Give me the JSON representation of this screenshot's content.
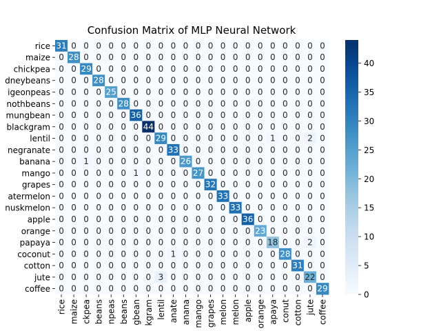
{
  "chart_data": {
    "type": "heatmap",
    "title": "Confusion Matrix of MLP Neural Network",
    "xlabel": "",
    "ylabel": "",
    "row_labels": [
      "rice",
      "maize",
      "chickpea",
      "kidneybeans",
      "pigeonpeas",
      "mothbeans",
      "mungbean",
      "blackgram",
      "lentil",
      "pomegranate",
      "banana",
      "mango",
      "grapes",
      "watermelon",
      "muskmelon",
      "apple",
      "orange",
      "papaya",
      "coconut",
      "cotton",
      "jute",
      "coffee"
    ],
    "row_labels_visible": [
      "rice",
      "maize",
      "chickpea",
      "dneybeans",
      "igeonpeas",
      "nothbeans",
      "mungbean",
      "blackgram",
      "lentil",
      "negranate",
      "banana",
      "mango",
      "grapes",
      "atermelon",
      "nuskmelon",
      "apple",
      "orange",
      "papaya",
      "coconut",
      "cotton",
      "jute",
      "coffee"
    ],
    "col_labels": [
      "rice",
      "maize",
      "chickpea",
      "kidneybeans",
      "pigeonpeas",
      "mothbeans",
      "mungbean",
      "blackgram",
      "lentil",
      "pomegranate",
      "banana",
      "mango",
      "grapes",
      "watermelon",
      "muskmelon",
      "apple",
      "orange",
      "papaya",
      "coconut",
      "cotton",
      "jute",
      "coffee"
    ],
    "col_labels_visible": [
      "rice",
      "maize",
      "ckpea",
      "beans",
      "npeas",
      "beans",
      "gbean",
      "kgram",
      "lentil",
      "anate",
      "anana",
      "mango",
      "grapes",
      "melon",
      "melon",
      "apple",
      "orange",
      "apaya",
      "conut",
      "cotton",
      "jute",
      "coffee"
    ],
    "matrix": [
      [
        31,
        0,
        0,
        0,
        0,
        0,
        0,
        0,
        0,
        0,
        0,
        0,
        0,
        0,
        0,
        0,
        0,
        0,
        0,
        0,
        0,
        0
      ],
      [
        0,
        28,
        0,
        0,
        0,
        0,
        0,
        0,
        0,
        0,
        0,
        0,
        0,
        0,
        0,
        0,
        0,
        0,
        0,
        0,
        0,
        0
      ],
      [
        0,
        0,
        29,
        0,
        0,
        0,
        0,
        0,
        0,
        0,
        0,
        0,
        0,
        0,
        0,
        0,
        0,
        0,
        0,
        0,
        0,
        0
      ],
      [
        0,
        0,
        0,
        28,
        0,
        0,
        0,
        0,
        0,
        0,
        0,
        0,
        0,
        0,
        0,
        0,
        0,
        0,
        0,
        0,
        0,
        0
      ],
      [
        0,
        0,
        0,
        0,
        25,
        0,
        0,
        0,
        0,
        0,
        0,
        0,
        0,
        0,
        0,
        0,
        0,
        0,
        0,
        0,
        0,
        0
      ],
      [
        0,
        0,
        0,
        0,
        0,
        28,
        0,
        0,
        0,
        0,
        0,
        0,
        0,
        0,
        0,
        0,
        0,
        0,
        0,
        0,
        0,
        0
      ],
      [
        0,
        0,
        0,
        0,
        0,
        0,
        36,
        0,
        0,
        0,
        0,
        0,
        0,
        0,
        0,
        0,
        0,
        0,
        0,
        0,
        0,
        0
      ],
      [
        0,
        0,
        0,
        0,
        0,
        0,
        0,
        44,
        0,
        0,
        0,
        0,
        0,
        0,
        0,
        0,
        0,
        0,
        0,
        0,
        0,
        0
      ],
      [
        0,
        0,
        0,
        0,
        0,
        0,
        0,
        0,
        29,
        0,
        0,
        0,
        0,
        0,
        0,
        0,
        0,
        1,
        0,
        0,
        2,
        0
      ],
      [
        0,
        0,
        0,
        0,
        0,
        0,
        0,
        0,
        0,
        33,
        0,
        0,
        0,
        0,
        0,
        0,
        0,
        0,
        0,
        0,
        0,
        0
      ],
      [
        0,
        0,
        1,
        0,
        0,
        0,
        0,
        0,
        0,
        0,
        26,
        0,
        0,
        0,
        0,
        0,
        0,
        0,
        0,
        0,
        0,
        0
      ],
      [
        0,
        0,
        0,
        0,
        0,
        0,
        1,
        0,
        0,
        0,
        0,
        27,
        0,
        0,
        0,
        0,
        0,
        0,
        0,
        0,
        0,
        0
      ],
      [
        0,
        0,
        0,
        0,
        0,
        0,
        0,
        0,
        0,
        0,
        0,
        0,
        32,
        0,
        0,
        0,
        0,
        0,
        0,
        0,
        0,
        0
      ],
      [
        0,
        0,
        0,
        0,
        0,
        0,
        0,
        0,
        0,
        0,
        0,
        0,
        0,
        33,
        0,
        0,
        0,
        0,
        0,
        0,
        0,
        0
      ],
      [
        0,
        0,
        0,
        0,
        0,
        0,
        0,
        0,
        0,
        0,
        0,
        0,
        0,
        0,
        33,
        0,
        0,
        0,
        0,
        0,
        0,
        0
      ],
      [
        0,
        0,
        0,
        0,
        0,
        0,
        0,
        0,
        0,
        0,
        0,
        0,
        0,
        0,
        0,
        36,
        0,
        0,
        0,
        0,
        0,
        0
      ],
      [
        0,
        0,
        0,
        0,
        0,
        0,
        0,
        0,
        0,
        0,
        0,
        0,
        0,
        0,
        0,
        0,
        23,
        0,
        0,
        0,
        0,
        0
      ],
      [
        0,
        0,
        0,
        0,
        0,
        0,
        0,
        0,
        0,
        0,
        0,
        0,
        0,
        0,
        0,
        0,
        0,
        18,
        0,
        0,
        2,
        0
      ],
      [
        0,
        0,
        0,
        0,
        0,
        0,
        0,
        0,
        0,
        1,
        0,
        0,
        0,
        0,
        0,
        0,
        0,
        0,
        28,
        0,
        0,
        0
      ],
      [
        0,
        0,
        0,
        0,
        0,
        0,
        0,
        0,
        0,
        0,
        0,
        0,
        0,
        0,
        0,
        0,
        0,
        0,
        0,
        31,
        0,
        0
      ],
      [
        0,
        0,
        0,
        0,
        0,
        0,
        0,
        0,
        3,
        0,
        0,
        0,
        0,
        0,
        0,
        0,
        0,
        0,
        0,
        0,
        22,
        0
      ],
      [
        0,
        0,
        0,
        0,
        0,
        0,
        0,
        0,
        0,
        0,
        0,
        0,
        0,
        0,
        0,
        0,
        0,
        0,
        0,
        0,
        0,
        29
      ]
    ],
    "color_range": [
      0,
      44
    ],
    "colormap": "Blues",
    "colorbar_ticks": [
      0,
      5,
      10,
      15,
      20,
      25,
      30,
      35,
      40
    ],
    "grid": false,
    "legend": "colorbar-right"
  }
}
